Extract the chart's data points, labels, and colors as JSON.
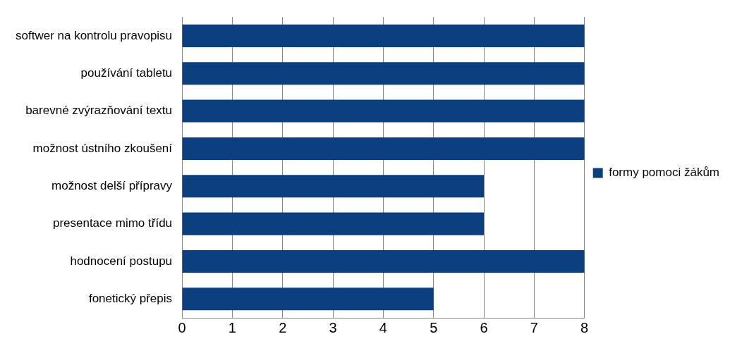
{
  "chart_data": {
    "type": "bar",
    "orientation": "horizontal",
    "categories": [
      "softwer na kontrolu pravopisu",
      "používání tabletu",
      "barevné zvýrazňování textu",
      "možnost ústního zkoušení",
      "možnost delší přípravy",
      "presentace mimo třídu",
      "hodnocení postupu",
      "fonetický přepis"
    ],
    "series": [
      {
        "name": "formy pomoci žákům",
        "color": "#0b3f7f",
        "values": [
          8,
          8,
          8,
          8,
          6,
          6,
          8,
          5
        ]
      }
    ],
    "xlim": [
      0,
      8
    ],
    "xticks": [
      0,
      1,
      2,
      3,
      4,
      5,
      6,
      7,
      8
    ],
    "grid": "x",
    "legend": "right"
  }
}
